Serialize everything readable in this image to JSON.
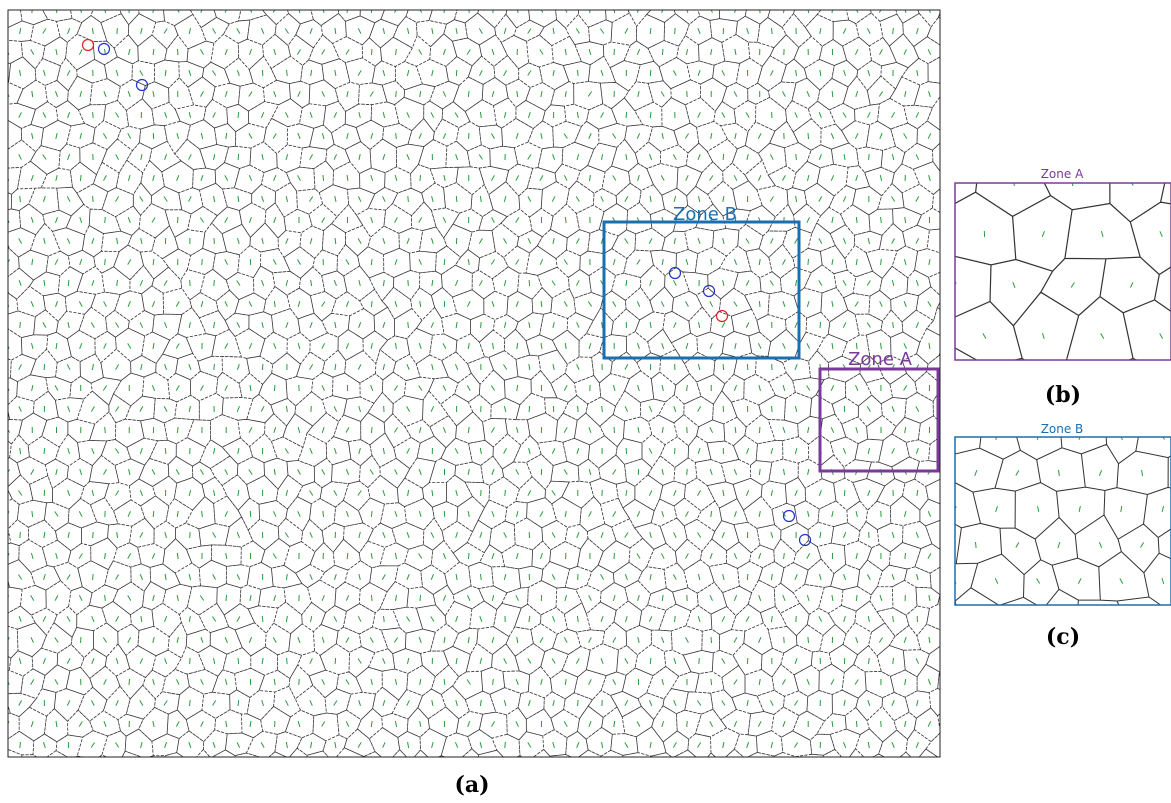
{
  "panels": [
    {
      "caption": "(a)",
      "zones": [
        {
          "label": "Zone B"
        },
        {
          "label": "Zone A"
        }
      ]
    },
    {
      "caption": "(b)",
      "title": "Zone A"
    },
    {
      "caption": "(c)",
      "title": "Zone B"
    }
  ]
}
